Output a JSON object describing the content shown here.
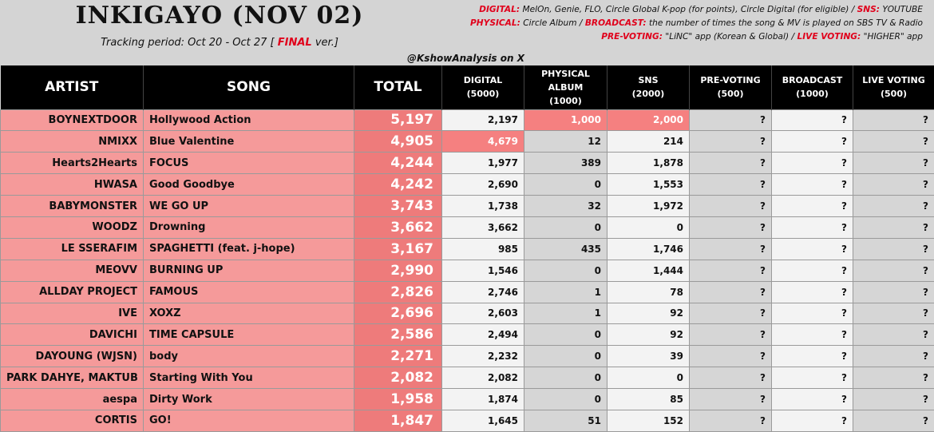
{
  "header": {
    "title": "INKIGAYO (NOV 02)",
    "tracking_prefix": "Tracking period: Oct 20 - Oct 27 [",
    "tracking_final": "FINAL",
    "tracking_suffix": "ver.]",
    "handle": "@KshowAnalysis on X",
    "legend": {
      "digital_key": "DIGITAL:",
      "digital_text": "MelOn, Genie, FLO, Circle Global K-pop (for points), Circle Digital (for eligible) /",
      "sns_key": "SNS:",
      "sns_text": "YOUTUBE",
      "physical_key": "PHYSICAL:",
      "physical_text": "Circle Album /",
      "broadcast_key": "BROADCAST:",
      "broadcast_text": "the number of times the song & MV is played on SBS TV & Radio",
      "prevoting_key": "PRE-VOTING:",
      "prevoting_text": "\"LiNC\" app (Korean & Global) /",
      "livevoting_key": "LIVE VOTING:",
      "livevoting_text": "\"HIGHER\" app"
    }
  },
  "columns": {
    "artist": "ARTIST",
    "song": "SONG",
    "total": "TOTAL",
    "digital": [
      "DIGITAL",
      "(5000)"
    ],
    "physical": [
      "PHYSICAL",
      "ALBUM",
      "(1000)"
    ],
    "sns": [
      "SNS",
      "(2000)"
    ],
    "prevoting": [
      "PRE-VOTING",
      "(500)"
    ],
    "broadcast": [
      "BROADCAST",
      "(1000)"
    ],
    "livevoting": [
      "LIVE VOTING",
      "(500)"
    ]
  },
  "rows": [
    {
      "artist": "BOYNEXTDOOR",
      "song": "Hollywood Action",
      "total": "5,197",
      "digital": "2,197",
      "physical": "1,000",
      "sns": "2,000",
      "prevoting": "?",
      "broadcast": "?",
      "livevoting": "?"
    },
    {
      "artist": "NMIXX",
      "song": "Blue Valentine",
      "total": "4,905",
      "digital": "4,679",
      "physical": "12",
      "sns": "214",
      "prevoting": "?",
      "broadcast": "?",
      "livevoting": "?"
    },
    {
      "artist": "Hearts2Hearts",
      "song": "FOCUS",
      "total": "4,244",
      "digital": "1,977",
      "physical": "389",
      "sns": "1,878",
      "prevoting": "?",
      "broadcast": "?",
      "livevoting": "?"
    },
    {
      "artist": "HWASA",
      "song": "Good Goodbye",
      "total": "4,242",
      "digital": "2,690",
      "physical": "0",
      "sns": "1,553",
      "prevoting": "?",
      "broadcast": "?",
      "livevoting": "?"
    },
    {
      "artist": "BABYMONSTER",
      "song": "WE GO UP",
      "total": "3,743",
      "digital": "1,738",
      "physical": "32",
      "sns": "1,972",
      "prevoting": "?",
      "broadcast": "?",
      "livevoting": "?"
    },
    {
      "artist": "WOODZ",
      "song": "Drowning",
      "total": "3,662",
      "digital": "3,662",
      "physical": "0",
      "sns": "0",
      "prevoting": "?",
      "broadcast": "?",
      "livevoting": "?"
    },
    {
      "artist": "LE SSERAFIM",
      "song": "SPAGHETTI (feat. j-hope)",
      "total": "3,167",
      "digital": "985",
      "physical": "435",
      "sns": "1,746",
      "prevoting": "?",
      "broadcast": "?",
      "livevoting": "?"
    },
    {
      "artist": "MEOVV",
      "song": "BURNING UP",
      "total": "2,990",
      "digital": "1,546",
      "physical": "0",
      "sns": "1,444",
      "prevoting": "?",
      "broadcast": "?",
      "livevoting": "?"
    },
    {
      "artist": "ALLDAY PROJECT",
      "song": "FAMOUS",
      "total": "2,826",
      "digital": "2,746",
      "physical": "1",
      "sns": "78",
      "prevoting": "?",
      "broadcast": "?",
      "livevoting": "?"
    },
    {
      "artist": "IVE",
      "song": "XOXZ",
      "total": "2,696",
      "digital": "2,603",
      "physical": "1",
      "sns": "92",
      "prevoting": "?",
      "broadcast": "?",
      "livevoting": "?"
    },
    {
      "artist": "DAVICHI",
      "song": "TIME CAPSULE",
      "total": "2,586",
      "digital": "2,494",
      "physical": "0",
      "sns": "92",
      "prevoting": "?",
      "broadcast": "?",
      "livevoting": "?"
    },
    {
      "artist": "DAYOUNG (WJSN)",
      "song": "body",
      "total": "2,271",
      "digital": "2,232",
      "physical": "0",
      "sns": "39",
      "prevoting": "?",
      "broadcast": "?",
      "livevoting": "?"
    },
    {
      "artist": "PARK DAHYE, MAKTUB",
      "song": "Starting With You",
      "total": "2,082",
      "digital": "2,082",
      "physical": "0",
      "sns": "0",
      "prevoting": "?",
      "broadcast": "?",
      "livevoting": "?"
    },
    {
      "artist": "aespa",
      "song": "Dirty Work",
      "total": "1,958",
      "digital": "1,874",
      "physical": "0",
      "sns": "85",
      "prevoting": "?",
      "broadcast": "?",
      "livevoting": "?"
    },
    {
      "artist": "CORTIS",
      "song": "GO!",
      "total": "1,847",
      "digital": "1,645",
      "physical": "51",
      "sns": "152",
      "prevoting": "?",
      "broadcast": "?",
      "livevoting": "?"
    }
  ],
  "highlights": [
    {
      "row": 0,
      "col": "physical"
    },
    {
      "row": 0,
      "col": "sns"
    },
    {
      "row": 1,
      "col": "digital"
    }
  ],
  "colors": {
    "red_key": "#e0001b",
    "name_cell": "#f59a9a",
    "total_cell": "#ee7b7b",
    "highlight_cell": "#f58080",
    "light_cell": "#f3f3f3",
    "gray_cell": "#d6d6d6",
    "header_bg": "#000000"
  }
}
